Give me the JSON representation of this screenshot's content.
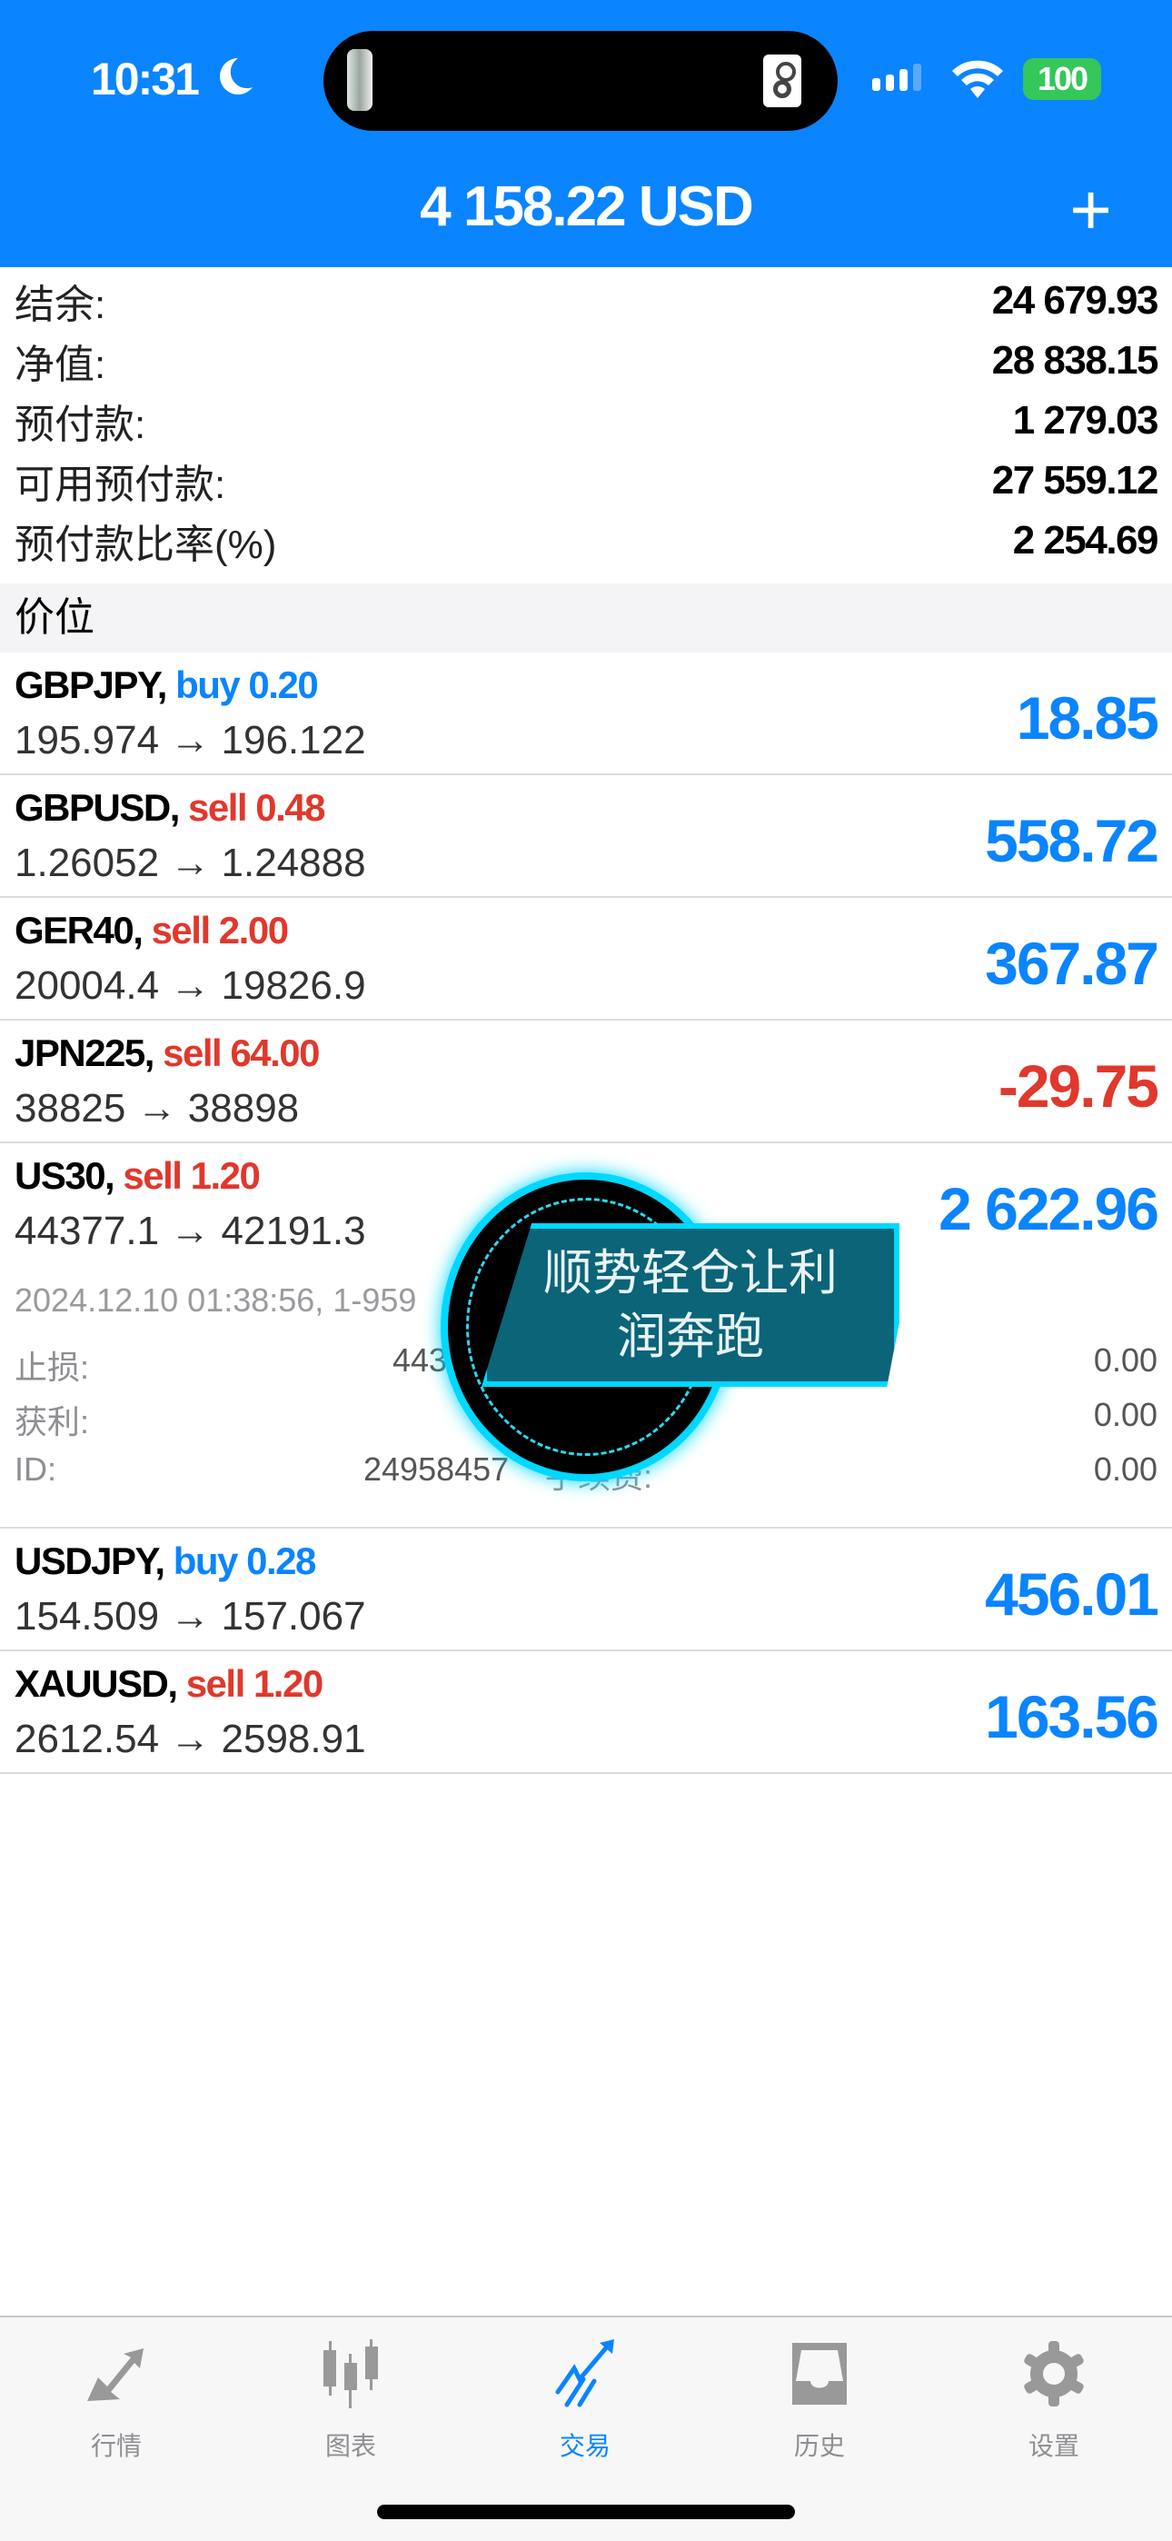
{
  "status_bar": {
    "time": "10:31",
    "battery": "100"
  },
  "header": {
    "title": "4 158.22 USD",
    "add_icon": "plus-icon"
  },
  "summary": [
    {
      "label": "结余:",
      "value": "24 679.93"
    },
    {
      "label": "净值:",
      "value": "28 838.15"
    },
    {
      "label": "预付款:",
      "value": "1 279.03"
    },
    {
      "label": "可用预付款:",
      "value": "27 559.12"
    },
    {
      "label": "预付款比率(%)",
      "value": "2 254.69"
    }
  ],
  "section_title": "价位",
  "positions": [
    {
      "symbol": "GBPJPY,",
      "dir": "buy 0.20",
      "side": "buy",
      "prices": "195.974 → 196.122",
      "profit": "18.85"
    },
    {
      "symbol": "GBPUSD,",
      "dir": "sell 0.48",
      "side": "sell",
      "prices": "1.26052 → 1.24888",
      "profit": "558.72"
    },
    {
      "symbol": "GER40,",
      "dir": "sell 2.00",
      "side": "sell",
      "prices": "20004.4 → 19826.9",
      "profit": "367.87"
    },
    {
      "symbol": "JPN225,",
      "dir": "sell 64.00",
      "side": "sell",
      "prices": "38825 → 38898",
      "profit": "-29.75"
    },
    {
      "symbol": "US30,",
      "dir": "sell 1.20",
      "side": "sell",
      "prices": "44377.1 → 42191.3",
      "profit": "2 622.96"
    },
    {
      "symbol": "USDJPY,",
      "dir": "buy 0.28",
      "side": "buy",
      "prices": "154.509 → 157.067",
      "profit": "456.01"
    },
    {
      "symbol": "XAUUSD,",
      "dir": "sell 1.20",
      "side": "sell",
      "prices": "2612.54 → 2598.91",
      "profit": "163.56"
    }
  ],
  "expanded": {
    "datetime": "2024.12.10 01:38:56, 1-959",
    "sl_label": "止损:",
    "sl_value": "443",
    "tp_label": "获利:",
    "id_label": "ID:",
    "id_value": "24958457",
    "fee_label": "手续费:",
    "right_values": [
      "0.00",
      "0.00",
      "0.00"
    ]
  },
  "overlay": {
    "line1": "顺势轻仓让利",
    "line2": "润奔跑"
  },
  "tabs": [
    {
      "label": "行情",
      "icon": "quotes-arrows-icon"
    },
    {
      "label": "图表",
      "icon": "candlestick-icon"
    },
    {
      "label": "交易",
      "icon": "trade-trend-icon",
      "active": true
    },
    {
      "label": "历史",
      "icon": "inbox-history-icon"
    },
    {
      "label": "设置",
      "icon": "gear-icon"
    }
  ],
  "colors": {
    "accent": "#0a84ff",
    "sell": "#e0382c",
    "battery": "#34c759"
  }
}
